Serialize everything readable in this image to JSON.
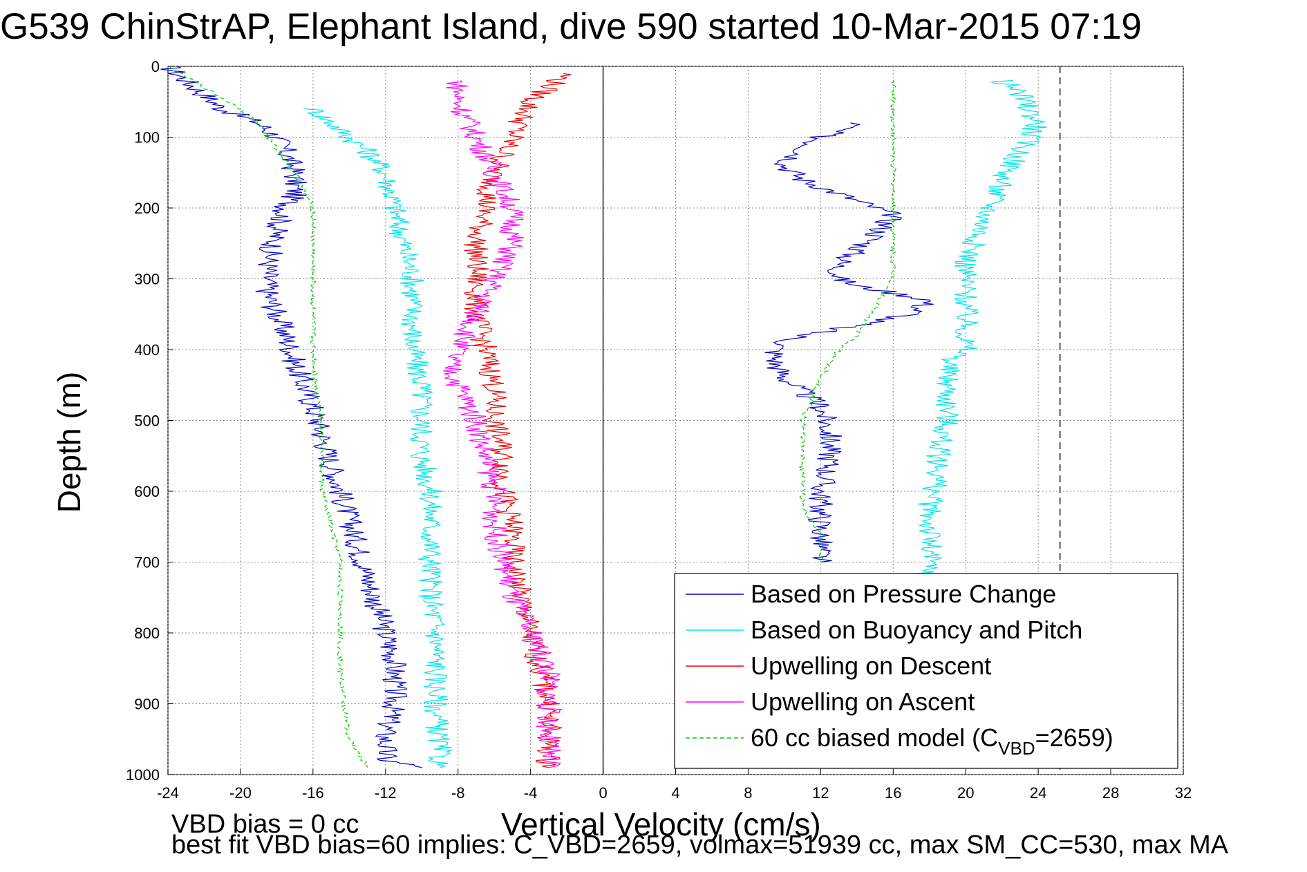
{
  "title": "G539 ChinStrAP, Elephant Island, dive 590 started 10-Mar-2015 07:19",
  "notes": [
    "VBD bias = 0 cc",
    "best fit VBD bias=60 implies: C_VBD=2659, volmax=51939 cc, max SM_CC=530, max MA"
  ],
  "chart_data": {
    "type": "line",
    "title": "G539 ChinStrAP, Elephant Island, dive 590 started 10-Mar-2015 07:19",
    "xlabel": "Vertical Velocity (cm/s)",
    "ylabel": "Depth (m)",
    "xlim": [
      -24,
      32
    ],
    "ylim": [
      1000,
      0
    ],
    "y_reversed": true,
    "grid": true,
    "legend_position": "lower-right",
    "xticks": [
      "-24",
      "-20",
      "-16",
      "-12",
      "-8",
      "-4",
      "0",
      "4",
      "8",
      "12",
      "16",
      "20",
      "24",
      "28",
      "32"
    ],
    "yticks": [
      "0",
      "100",
      "200",
      "300",
      "400",
      "500",
      "600",
      "700",
      "800",
      "900",
      "1000"
    ],
    "reference_lines": [
      {
        "axis": "x",
        "value": 0,
        "style": "solid",
        "color": "#000000"
      },
      {
        "axis": "x",
        "value": 25.2,
        "style": "dashed",
        "color": "#555555"
      }
    ],
    "legend": {
      "entries": [
        {
          "label": "Based on Pressure Change",
          "color": "#0000cc",
          "dash": "solid"
        },
        {
          "label": "Based on Buoyancy and Pitch",
          "color": "#00e5e5",
          "dash": "solid"
        },
        {
          "label": "Upwelling on Descent",
          "color": "#ee0000",
          "dash": "solid"
        },
        {
          "label": "Upwelling on Ascent",
          "color": "#ff00ff",
          "dash": "solid"
        },
        {
          "label": "60 cc biased model (C",
          "sub": "VBD",
          "suffix": "=2659)",
          "color": "#00cc00",
          "dash": "dashed"
        }
      ]
    },
    "series": [
      {
        "name": "Based on Pressure Change",
        "color": "#0000cc",
        "dash": "solid",
        "x": [
          -24,
          -23,
          -22,
          -21,
          -20,
          -19,
          -18,
          -17.5,
          -17,
          -17,
          -17.5,
          -18,
          -18.3,
          -18.5,
          -18.5,
          -18,
          -17.5,
          -17.2,
          -17,
          -16.5,
          -16,
          -15.5,
          -15,
          -14.5,
          -14,
          -13.5,
          -13,
          -12.5,
          -12,
          -11.5,
          -11.5,
          -11.5,
          -12,
          -12,
          -10
        ],
        "y": [
          0,
          20,
          40,
          60,
          70,
          80,
          100,
          120,
          150,
          180,
          200,
          230,
          260,
          290,
          320,
          350,
          380,
          400,
          420,
          450,
          480,
          520,
          560,
          600,
          640,
          680,
          720,
          760,
          800,
          840,
          870,
          900,
          940,
          980,
          990
        ],
        "descent_x": [
          14,
          12,
          11,
          10,
          11,
          13,
          16,
          15,
          14,
          13,
          13,
          14,
          16,
          18,
          17,
          15,
          13,
          11,
          10,
          9.5,
          9.5,
          10,
          11,
          12,
          12.5,
          12.5,
          12,
          12,
          12,
          12
        ],
        "descent_y": [
          80,
          100,
          120,
          140,
          160,
          180,
          210,
          240,
          260,
          280,
          300,
          310,
          320,
          330,
          350,
          360,
          370,
          380,
          390,
          400,
          420,
          440,
          460,
          480,
          520,
          560,
          600,
          640,
          680,
          700
        ]
      },
      {
        "name": "Based on Buoyancy and Pitch",
        "color": "#00e5e5",
        "dash": "solid",
        "x": [
          -16,
          -15,
          -14,
          -13,
          -12,
          -11.5,
          -11,
          -10.5,
          -10.5,
          -10.5,
          -10,
          -10,
          -10,
          -9.5,
          -9.5,
          -9.5,
          -9.5,
          -9.2,
          -9.2,
          -9
        ],
        "y": [
          60,
          80,
          100,
          120,
          150,
          200,
          250,
          300,
          350,
          400,
          450,
          500,
          550,
          600,
          650,
          700,
          750,
          800,
          900,
          990
        ],
        "descent_x": [
          22,
          23,
          24,
          22,
          21,
          20,
          20,
          20,
          19,
          19,
          19,
          18.5,
          18.5,
          18,
          18,
          18,
          18
        ],
        "descent_y": [
          20,
          40,
          80,
          160,
          220,
          280,
          340,
          400,
          420,
          460,
          500,
          540,
          580,
          620,
          660,
          700,
          720
        ]
      },
      {
        "name": "Upwelling on Descent",
        "color": "#ee0000",
        "dash": "solid",
        "x": [
          -2,
          -4,
          -5,
          -6,
          -6.5,
          -7,
          -7,
          -7,
          -6.5,
          -6,
          -6,
          -5.5,
          -5.5,
          -5,
          -5,
          -4.5,
          -4,
          -3.5,
          -3,
          -3,
          -3
        ],
        "y": [
          10,
          50,
          100,
          150,
          200,
          250,
          300,
          350,
          400,
          450,
          500,
          550,
          600,
          650,
          700,
          750,
          800,
          850,
          900,
          950,
          990
        ]
      },
      {
        "name": "Upwelling on Ascent",
        "color": "#ff00ff",
        "dash": "solid",
        "x": [
          -8,
          -8,
          -7,
          -6,
          -5,
          -5,
          -6,
          -7,
          -8,
          -8.5,
          -8,
          -7,
          -6.5,
          -6,
          -6,
          -5.5,
          -5,
          -4,
          -3,
          -3,
          -3
        ],
        "y": [
          20,
          50,
          100,
          150,
          200,
          250,
          300,
          350,
          400,
          420,
          450,
          500,
          550,
          600,
          650,
          700,
          750,
          800,
          850,
          900,
          990
        ]
      },
      {
        "name": "60 cc biased model (CVBD=2659)",
        "color": "#00cc00",
        "dash": "dashed",
        "x": [
          -24,
          -22,
          -20,
          -19,
          -18.5,
          -17,
          -16,
          -16,
          -16,
          -16,
          -16,
          -15.8,
          -15.5,
          -15.5,
          -15.5,
          -15,
          -14.5,
          -14.5,
          -14.5,
          -14.5,
          -14.3,
          -14,
          -13
        ],
        "y": [
          0,
          30,
          60,
          80,
          100,
          150,
          200,
          250,
          300,
          350,
          400,
          450,
          500,
          550,
          600,
          650,
          700,
          750,
          800,
          850,
          900,
          950,
          990
        ],
        "descent_x": [
          16,
          16,
          16,
          16,
          16,
          16,
          14,
          13,
          12,
          11,
          11,
          11,
          11,
          12,
          12
        ],
        "descent_y": [
          20,
          60,
          100,
          160,
          220,
          300,
          380,
          400,
          440,
          500,
          540,
          580,
          620,
          660,
          700
        ]
      }
    ]
  }
}
